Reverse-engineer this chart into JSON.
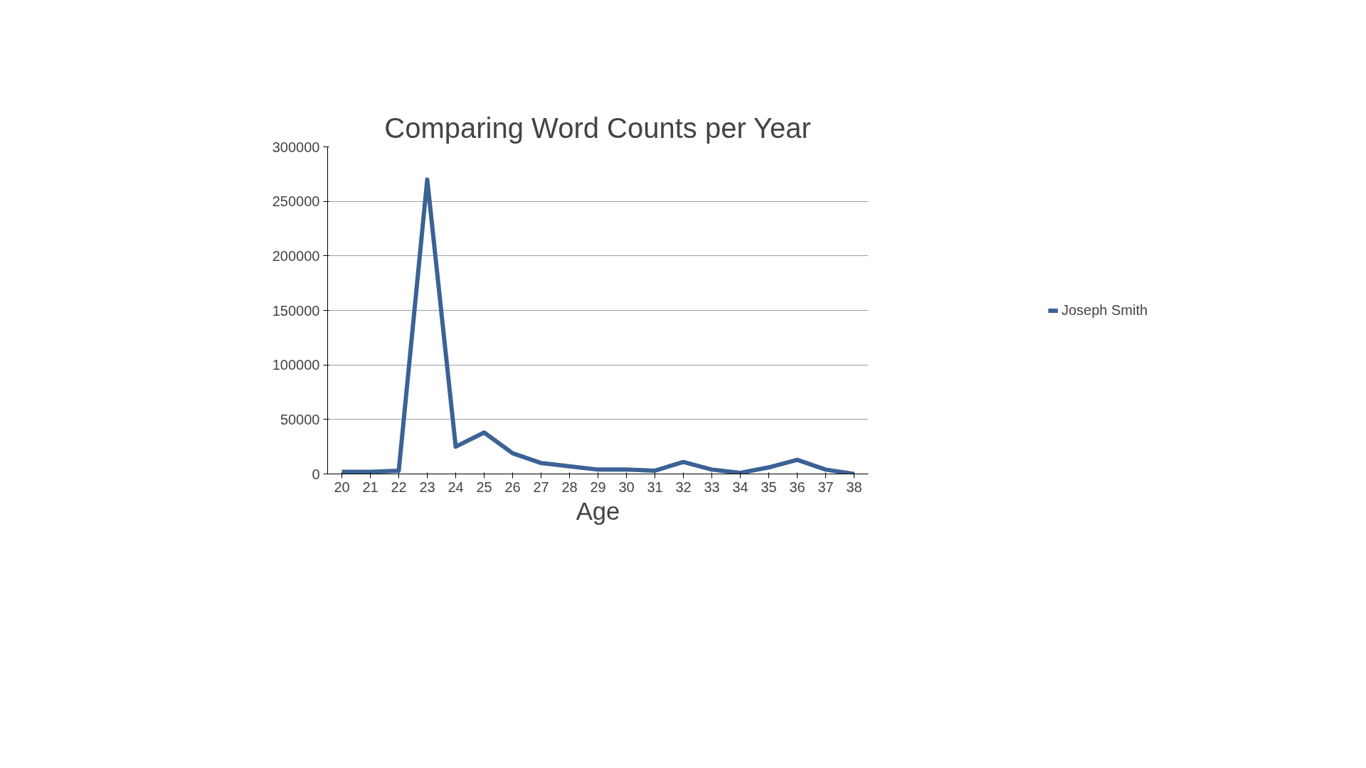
{
  "chart_data": {
    "type": "line",
    "title": "Comparing Word Counts per Year",
    "xlabel": "Age",
    "categories": [
      "20",
      "21",
      "22",
      "23",
      "24",
      "25",
      "26",
      "27",
      "28",
      "29",
      "30",
      "31",
      "32",
      "33",
      "34",
      "35",
      "36",
      "37",
      "38"
    ],
    "series": [
      {
        "name": "Joseph Smith",
        "color": "#3b6295",
        "values": [
          2000,
          2000,
          3000,
          270000,
          25000,
          38000,
          19000,
          10000,
          7000,
          4000,
          4000,
          3000,
          11000,
          4000,
          1000,
          6000,
          13000,
          4000,
          0
        ]
      }
    ],
    "ylim": [
      0,
      300000
    ],
    "yticks": [
      0,
      50000,
      100000,
      150000,
      200000,
      250000,
      300000
    ],
    "grid": "y",
    "legend": "right",
    "marker": "none",
    "line_style": "solid"
  }
}
